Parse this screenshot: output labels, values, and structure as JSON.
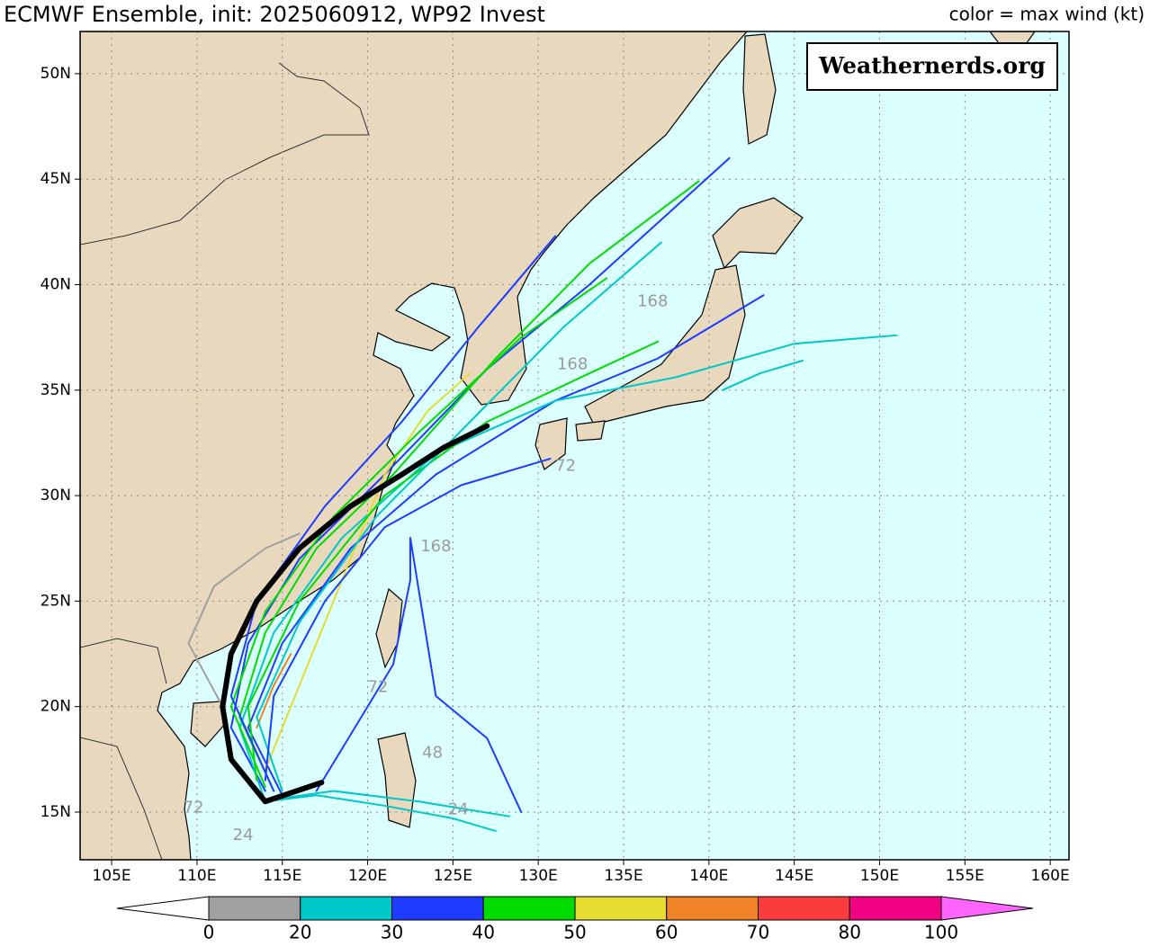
{
  "title": "ECMWF Ensemble, init: 2025060912, WP92 Invest",
  "subtitle": "color = max wind (kt)",
  "watermark": "Weathernerds.org",
  "map": {
    "lonlim": [
      103.15,
      161.1
    ],
    "latlim": [
      12.74,
      52.0
    ],
    "lonticks": [
      {
        "value": 105,
        "label": "105E"
      },
      {
        "value": 110,
        "label": "110E"
      },
      {
        "value": 115,
        "label": "115E"
      },
      {
        "value": 120,
        "label": "120E"
      },
      {
        "value": 125,
        "label": "125E"
      },
      {
        "value": 130,
        "label": "130E"
      },
      {
        "value": 135,
        "label": "135E"
      },
      {
        "value": 140,
        "label": "140E"
      },
      {
        "value": 145,
        "label": "145E"
      },
      {
        "value": 150,
        "label": "150E"
      },
      {
        "value": 155,
        "label": "155E"
      },
      {
        "value": 160,
        "label": "160E"
      }
    ],
    "latticks": [
      {
        "value": 15,
        "label": "15N"
      },
      {
        "value": 20,
        "label": "20N"
      },
      {
        "value": 25,
        "label": "25N"
      },
      {
        "value": 30,
        "label": "30N"
      },
      {
        "value": 35,
        "label": "35N"
      },
      {
        "value": 40,
        "label": "40N"
      },
      {
        "value": 45,
        "label": "45N"
      },
      {
        "value": 50,
        "label": "50N"
      }
    ],
    "grid": true
  },
  "colorbar": {
    "bounds": [
      0,
      20,
      30,
      40,
      50,
      60,
      70,
      80,
      100
    ],
    "colors": [
      "#a0a0a0",
      "#00c8c8",
      "#1e3cff",
      "#00dc00",
      "#e6dc32",
      "#f08228",
      "#fa3c3c",
      "#f00082"
    ],
    "under_color": "#ffffff",
    "over_color": "#ff64ff"
  },
  "tracks": [
    {
      "color": "#00c8c8",
      "lon": [
        114.0,
        117.0,
        121.0,
        125.0,
        127.5
      ],
      "lat": [
        15.5,
        15.8,
        15.3,
        14.7,
        14.1
      ]
    },
    {
      "color": "#00c8c8",
      "lon": [
        114.5,
        118.0,
        123.0,
        128.3
      ],
      "lat": [
        15.6,
        16.0,
        15.5,
        14.8
      ]
    },
    {
      "color": "#1e3cff",
      "lon": [
        114.0,
        112.0,
        113.0,
        116.0,
        121.0,
        127.0,
        133.0,
        141.2
      ],
      "lat": [
        16.0,
        19.0,
        23.0,
        27.0,
        31.0,
        36.0,
        40.0,
        46.0
      ]
    },
    {
      "color": "#00dc00",
      "lon": [
        114.5,
        112.5,
        114.0,
        117.0,
        121.5,
        127.5,
        133.0,
        139.4
      ],
      "lat": [
        16.0,
        19.5,
        23.5,
        27.5,
        31.0,
        36.5,
        41.0,
        44.9
      ]
    },
    {
      "color": "#1e3cff",
      "lon": [
        115.0,
        113.0,
        115.0,
        119.0,
        124.0,
        131.0,
        137.0,
        143.2
      ],
      "lat": [
        15.8,
        19.0,
        23.0,
        27.5,
        31.0,
        34.5,
        36.5,
        39.5
      ]
    },
    {
      "color": "#00c8c8",
      "lon": [
        114.0,
        112.5,
        114.5,
        118.5,
        124.0,
        131.0,
        138.0,
        145.0,
        151.0
      ],
      "lat": [
        15.5,
        19.0,
        23.5,
        28.0,
        32.0,
        34.5,
        35.6,
        37.2,
        37.6
      ]
    },
    {
      "color": "#00c8c8",
      "lon": [
        140.8,
        143.0,
        145.5
      ],
      "lat": [
        35.0,
        35.8,
        36.4
      ]
    },
    {
      "color": "#1e3cff",
      "lon": [
        117.0,
        121.5,
        122.5,
        122.5,
        124.0,
        127.0,
        129.0
      ],
      "lat": [
        16.0,
        22.0,
        26.0,
        28.0,
        20.5,
        18.5,
        15.0
      ]
    },
    {
      "color": "#a0a0a0",
      "lon": [
        111.5,
        109.5,
        111.0,
        114.0,
        116.0
      ],
      "lat": [
        20.0,
        23.0,
        25.7,
        27.5,
        28.2
      ]
    },
    {
      "color": "#e6dc32",
      "lon": [
        114.0,
        116.0,
        118.0,
        121.0,
        123.5,
        126.0
      ],
      "lat": [
        17.0,
        21.0,
        25.0,
        31.0,
        34.0,
        35.8
      ]
    },
    {
      "color": "#f08228",
      "lon": [
        113.5,
        114.5,
        115.5
      ],
      "lat": [
        19.0,
        21.0,
        22.5
      ]
    },
    {
      "color": "#00dc00",
      "lon": [
        113.5,
        113.0,
        116.0,
        121.0,
        127.0,
        133.0,
        137.0
      ],
      "lat": [
        16.5,
        20.0,
        25.0,
        30.0,
        33.5,
        35.8,
        37.3
      ]
    },
    {
      "color": "#00dc00",
      "lon": [
        114.0,
        112.0,
        114.0,
        118.0,
        123.0,
        129.0,
        134.0
      ],
      "lat": [
        16.2,
        20.0,
        24.5,
        29.0,
        33.0,
        37.5,
        40.3
      ]
    },
    {
      "color": "#1e3cff",
      "lon": [
        114.5,
        112.0,
        113.5,
        117.5,
        122.0,
        126.5,
        131.0
      ],
      "lat": [
        16.0,
        20.5,
        25.0,
        29.5,
        33.5,
        38.0,
        42.3
      ]
    },
    {
      "color": "#00c8c8",
      "lon": [
        115.0,
        113.5,
        116.0,
        120.5,
        126.0,
        131.5,
        137.2
      ],
      "lat": [
        16.0,
        19.5,
        24.0,
        29.0,
        33.5,
        38.0,
        42.0
      ]
    },
    {
      "color": "#1e3cff",
      "lon": [
        114.0,
        114.5,
        117.5,
        121.0,
        125.5,
        130.7
      ],
      "lat": [
        16.5,
        20.5,
        25.0,
        28.5,
        30.5,
        31.75
      ]
    },
    {
      "color": "#000000",
      "lon": [
        117.3,
        114.0,
        112.0,
        111.5,
        112.0,
        113.5,
        116.0,
        119.0,
        122.0,
        124.5,
        127.0
      ],
      "lat": [
        16.4,
        15.5,
        17.5,
        20.0,
        22.5,
        25.0,
        27.5,
        29.5,
        31.0,
        32.3,
        33.3
      ]
    }
  ],
  "track_labels": [
    {
      "text": "168",
      "lon": 136.7,
      "lat": 39.2
    },
    {
      "text": "168",
      "lon": 132.0,
      "lat": 36.2
    },
    {
      "text": "168",
      "lon": 124.0,
      "lat": 27.57
    },
    {
      "text": "72",
      "lon": 131.6,
      "lat": 31.4
    },
    {
      "text": "72",
      "lon": 120.6,
      "lat": 20.9
    },
    {
      "text": "48",
      "lon": 123.8,
      "lat": 17.8
    },
    {
      "text": "24",
      "lon": 125.3,
      "lat": 15.1
    },
    {
      "text": "72",
      "lon": 109.8,
      "lat": 15.2
    },
    {
      "text": "24",
      "lon": 112.7,
      "lat": 13.9
    }
  ]
}
